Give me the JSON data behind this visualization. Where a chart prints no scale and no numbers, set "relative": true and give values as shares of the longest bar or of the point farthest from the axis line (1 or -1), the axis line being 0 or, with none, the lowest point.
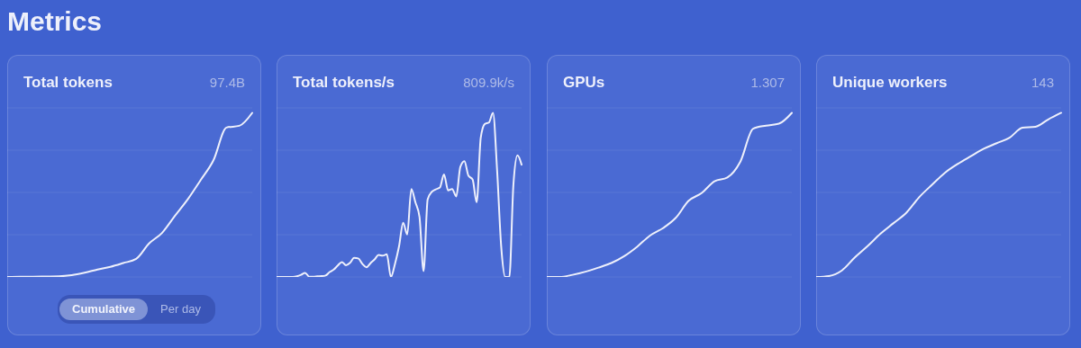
{
  "chart_data": [
    {
      "type": "other",
      "title": "Metrics"
    },
    {
      "type": "line",
      "title": "Total tokens",
      "subtitle": "97.4B",
      "relative": true,
      "grid": true,
      "annotations": [
        "Cumulative",
        "Per day"
      ],
      "categories": [
        null,
        null,
        null,
        null,
        null,
        null,
        null,
        null,
        null,
        null,
        null,
        null,
        null,
        null,
        null,
        null,
        null,
        null,
        null,
        null
      ],
      "series": [
        {
          "color": "#eef0fb",
          "values": [
            0,
            0.002,
            0.002,
            0.003,
            0.004,
            0.011,
            0.026,
            0.045,
            0.062,
            0.085,
            0.11,
            0.204,
            0.268,
            0.372,
            0.473,
            0.59,
            0.712,
            0.91,
            0.921,
            1
          ]
        }
      ]
    },
    {
      "type": "line",
      "title": "Total tokens/s",
      "subtitle": "809.9k/s",
      "relative": true,
      "grid": true,
      "categories": [
        null,
        null,
        null,
        null,
        null,
        null,
        null,
        null,
        null,
        null,
        null,
        null,
        null,
        null,
        null,
        null,
        null,
        null,
        null,
        null,
        null,
        null,
        null,
        null,
        null,
        null,
        null,
        null,
        null,
        null,
        null,
        null,
        null,
        null,
        null,
        null,
        null,
        null,
        null,
        null,
        null,
        null,
        null,
        null,
        null,
        null,
        null,
        null,
        null,
        null,
        null,
        null,
        null,
        null,
        null,
        null,
        null,
        null,
        null,
        null,
        null
      ],
      "series": [
        {
          "color": "#eef0fb",
          "values": [
            0,
            0,
            0,
            0,
            0,
            0.004,
            0.013,
            0.025,
            0.002,
            0.002,
            0.004,
            0.005,
            0.009,
            0.03,
            0.045,
            0.07,
            0.091,
            0.071,
            0.086,
            0.116,
            0.113,
            0.08,
            0.059,
            0.084,
            0.107,
            0.134,
            0.13,
            0.138,
            0,
            0.08,
            0.188,
            0.33,
            0.259,
            0.536,
            0.455,
            0.366,
            0.036,
            0.473,
            0.518,
            0.534,
            0.545,
            0.625,
            0.527,
            0.536,
            0.491,
            0.67,
            0.705,
            0.616,
            0.595,
            0.455,
            0.848,
            0.932,
            0.941,
            1,
            0.652,
            0.188,
            0,
            0,
            0.563,
            0.741,
            0.684
          ]
        }
      ]
    },
    {
      "type": "line",
      "title": "GPUs",
      "subtitle": "1.307",
      "relative": true,
      "grid": true,
      "categories": [
        null,
        null,
        null,
        null,
        null,
        null,
        null,
        null,
        null,
        null,
        null,
        null,
        null,
        null,
        null,
        null,
        null,
        null,
        null,
        null
      ],
      "series": [
        {
          "color": "#eef0fb",
          "values": [
            0,
            0,
            0.013,
            0.032,
            0.057,
            0.085,
            0.127,
            0.184,
            0.252,
            0.297,
            0.36,
            0.464,
            0.511,
            0.583,
            0.606,
            0.701,
            0.903,
            0.922,
            0.934,
            1
          ]
        }
      ]
    },
    {
      "type": "line",
      "title": "Unique workers",
      "subtitle": "143",
      "relative": true,
      "grid": true,
      "categories": [
        null,
        null,
        null,
        null,
        null,
        null,
        null,
        null,
        null,
        null,
        null,
        null,
        null,
        null,
        null,
        null,
        null,
        null,
        null,
        null
      ],
      "series": [
        {
          "color": "#eef0fb",
          "values": [
            0,
            0.006,
            0.04,
            0.119,
            0.189,
            0.264,
            0.328,
            0.392,
            0.487,
            0.563,
            0.636,
            0.69,
            0.736,
            0.781,
            0.815,
            0.849,
            0.909,
            0.915,
            0.96,
            1
          ]
        }
      ]
    }
  ]
}
